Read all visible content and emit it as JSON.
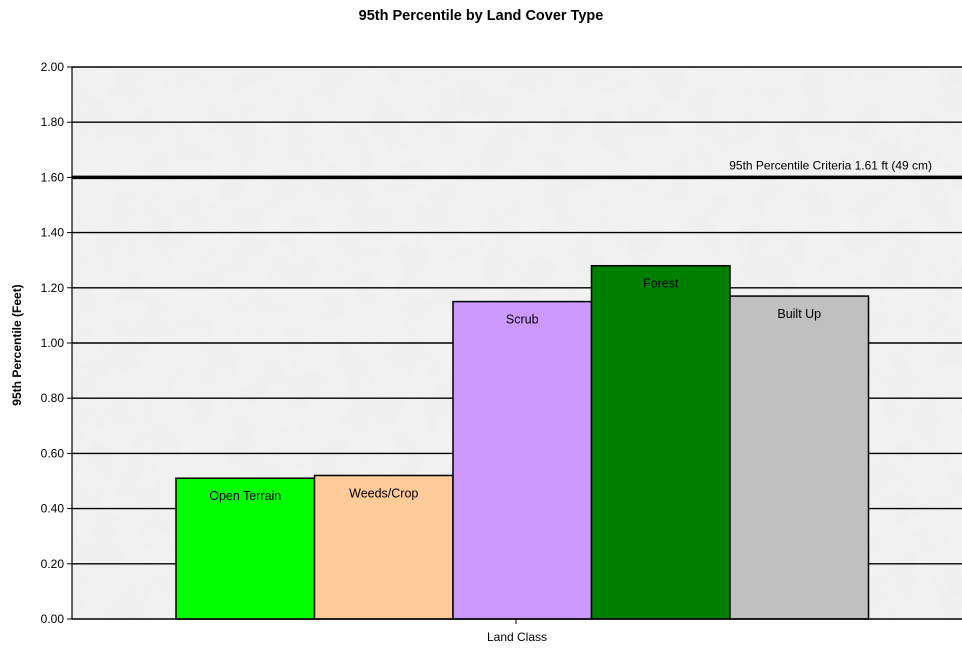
{
  "chart_data": {
    "type": "bar",
    "title": "95th Percentile by Land Cover Type",
    "xlabel": "Land Class",
    "ylabel": "95th Percentile (Feet)",
    "ylim": [
      0,
      2.0
    ],
    "yticks": [
      "0.00",
      "0.20",
      "0.40",
      "0.60",
      "0.80",
      "1.00",
      "1.20",
      "1.40",
      "1.60",
      "1.80",
      "2.00"
    ],
    "grid": true,
    "categories": [
      "Open Terrain",
      "Weeds/Crop",
      "Scrub",
      "Forest",
      "Built Up"
    ],
    "values": [
      0.51,
      0.52,
      1.15,
      1.28,
      1.17
    ],
    "colors": [
      "#00ff00",
      "#ffcc99",
      "#cc99ff",
      "#008000",
      "#c0c0c0"
    ],
    "reference_line": {
      "value": 1.6,
      "label": "95th Percentile Criteria 1.61 ft (49 cm)"
    }
  }
}
